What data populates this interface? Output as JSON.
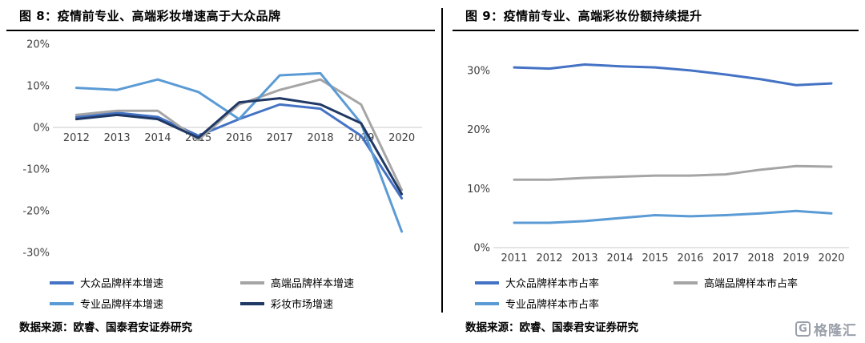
{
  "figures": [
    {
      "title": "图 8：疫情前专业、高端彩妆增速高于大众品牌",
      "source": "数据来源：欧睿、国泰君安证券研究"
    },
    {
      "title": "图 9：疫情前专业、高端彩妆份额持续提升",
      "source": "数据来源：欧睿、国泰君安证券研究"
    }
  ],
  "logo": {
    "letter": "G",
    "text": "格隆汇"
  },
  "colors": {
    "blue": "#4472C4",
    "gray": "#A5A5A5",
    "lightblue": "#5B9BD5",
    "navy": "#1F3864",
    "axis_line": "#c9c9c9",
    "axis_label": "#404040"
  },
  "chart_data": [
    {
      "type": "line",
      "title": "图 8：疫情前专业、高端彩妆增速高于大众品牌",
      "x": [
        2012,
        2013,
        2014,
        2015,
        2016,
        2017,
        2018,
        2019,
        2020
      ],
      "ylim": [
        -30,
        20
      ],
      "yticks": [
        20,
        10,
        0,
        -10,
        -20,
        -30
      ],
      "grid": false,
      "legend_position": "bottom",
      "series": [
        {
          "name": "大众品牌样本增速",
          "color": "blue",
          "values": [
            2.5,
            3.5,
            2.5,
            -2,
            2,
            5.5,
            4.5,
            -2,
            -17
          ]
        },
        {
          "name": "高端品牌样本增速",
          "color": "gray",
          "values": [
            3,
            4,
            4,
            -3,
            5.5,
            9,
            11.5,
            5.5,
            -15
          ]
        },
        {
          "name": "专业品牌样本增速",
          "color": "lightblue",
          "values": [
            9.5,
            9,
            11.5,
            8.5,
            2,
            12.5,
            13,
            1,
            -25
          ]
        },
        {
          "name": "彩妆市场增速",
          "color": "navy",
          "values": [
            2,
            3,
            2,
            -2.5,
            6,
            7,
            5.5,
            1,
            -16
          ]
        }
      ]
    },
    {
      "type": "line",
      "title": "图 9：疫情前专业、高端彩妆份额持续提升",
      "x": [
        2011,
        2012,
        2013,
        2014,
        2015,
        2016,
        2017,
        2018,
        2019,
        2020
      ],
      "ylim": [
        0,
        35
      ],
      "yticks": [
        30,
        20,
        10,
        0
      ],
      "grid": false,
      "legend_position": "bottom",
      "series": [
        {
          "name": "大众品牌样本市占率",
          "color": "blue",
          "values": [
            30.5,
            30.3,
            31,
            30.7,
            30.5,
            30,
            29.3,
            28.5,
            27.5,
            27.8
          ]
        },
        {
          "name": "高端品牌样本市占率",
          "color": "gray",
          "values": [
            11.5,
            11.5,
            11.8,
            12,
            12.2,
            12.2,
            12.4,
            13.2,
            13.8,
            13.7
          ]
        },
        {
          "name": "专业品牌样本市占率",
          "color": "lightblue",
          "values": [
            4.2,
            4.2,
            4.5,
            5,
            5.5,
            5.3,
            5.5,
            5.8,
            6.2,
            5.8
          ]
        }
      ]
    }
  ]
}
